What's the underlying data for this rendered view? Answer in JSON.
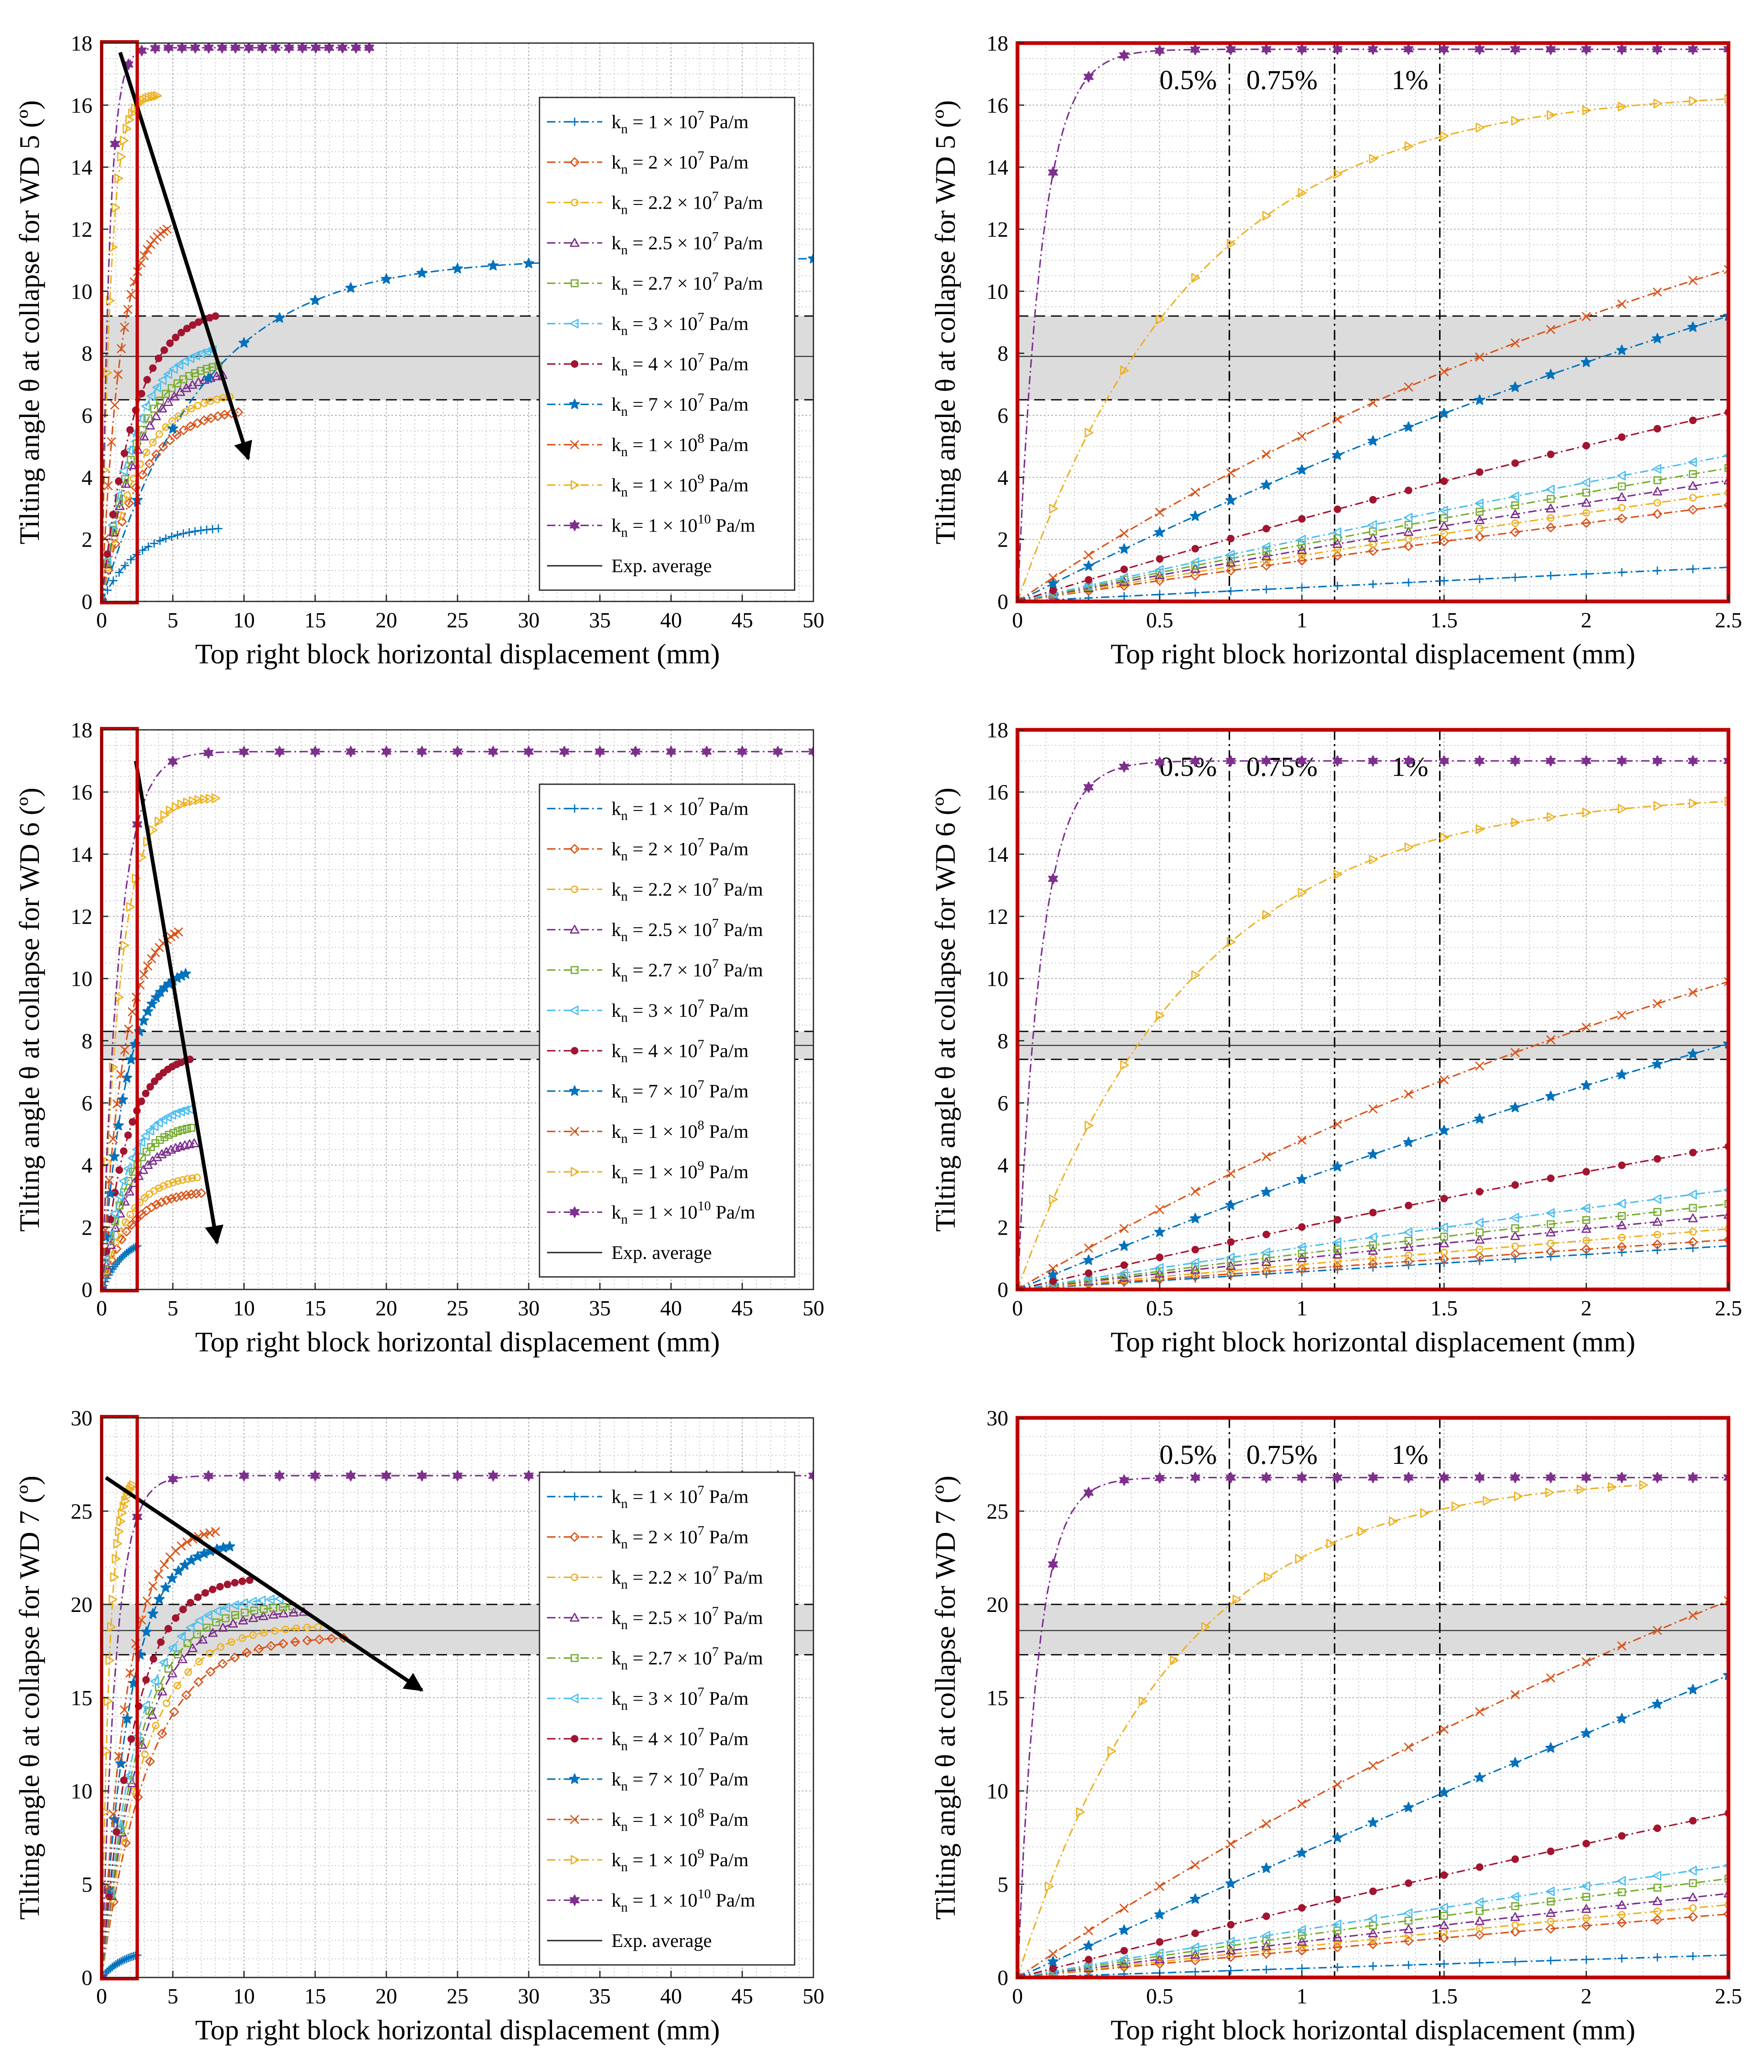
{
  "figure": {
    "legend_labels": [
      {
        "name": "kn1e7",
        "base": "k",
        "sub": "n",
        "eq": " = 1 × 10",
        "exp": "7",
        "unit": " Pa/m"
      },
      {
        "name": "kn2e7",
        "base": "k",
        "sub": "n",
        "eq": " = 2 × 10",
        "exp": "7",
        "unit": " Pa/m"
      },
      {
        "name": "kn2.2e7",
        "base": "k",
        "sub": "n",
        "eq": " = 2.2 × 10",
        "exp": "7",
        "unit": " Pa/m"
      },
      {
        "name": "kn2.5e7",
        "base": "k",
        "sub": "n",
        "eq": " = 2.5 × 10",
        "exp": "7",
        "unit": " Pa/m"
      },
      {
        "name": "kn2.7e7",
        "base": "k",
        "sub": "n",
        "eq": " = 2.7 × 10",
        "exp": "7",
        "unit": " Pa/m"
      },
      {
        "name": "kn3e7",
        "base": "k",
        "sub": "n",
        "eq": " = 3 × 10",
        "exp": "7",
        "unit": " Pa/m"
      },
      {
        "name": "kn4e7",
        "base": "k",
        "sub": "n",
        "eq": " = 4 × 10",
        "exp": "7",
        "unit": " Pa/m"
      },
      {
        "name": "kn7e7",
        "base": "k",
        "sub": "n",
        "eq": " = 7 × 10",
        "exp": "7",
        "unit": " Pa/m"
      },
      {
        "name": "kn1e8",
        "base": "k",
        "sub": "n",
        "eq": " = 1 × 10",
        "exp": "8",
        "unit": " Pa/m"
      },
      {
        "name": "kn1e9",
        "base": "k",
        "sub": "n",
        "eq": " = 1 × 10",
        "exp": "9",
        "unit": " Pa/m"
      },
      {
        "name": "kn1e10",
        "base": "k",
        "sub": "n",
        "eq": " = 1 × 10",
        "exp": "10",
        "unit": " Pa/m"
      }
    ],
    "exp_average_label": "Exp. average",
    "series_colors": [
      "#0072BD",
      "#D95319",
      "#EDB120",
      "#7E2F8E",
      "#77AC30",
      "#4DBEEE",
      "#A2142F",
      "#0072BD",
      "#D95319",
      "#EDB120",
      "#7E2F8E"
    ],
    "series_markers": [
      "plus",
      "diamond",
      "circle",
      "triangle-up",
      "square",
      "triangle-left",
      "dot",
      "star",
      "x",
      "triangle-right",
      "hexagram"
    ],
    "highlight_color": "#C00000",
    "band_color": "#DCDCDC",
    "drift_labels": [
      "0.5%",
      "0.75%",
      "1%"
    ],
    "drift_x_mm": [
      0.745,
      1.115,
      1.485
    ],
    "zoom_region_mm": [
      0,
      2.5
    ]
  },
  "chart_data": [
    {
      "id": "wd5_full",
      "type": "line",
      "xlabel": "Top right block horizontal displacement (mm)",
      "ylabel": "Tilting angle θ at collapse for WD 5 (º)",
      "xlim": [
        0,
        50
      ],
      "ylim": [
        0,
        18
      ],
      "xticks": [
        "0",
        "5",
        "10",
        "15",
        "20",
        "25",
        "30",
        "35",
        "40",
        "45",
        "50"
      ],
      "yticks": [
        "0",
        "2",
        "4",
        "6",
        "8",
        "10",
        "12",
        "14",
        "16",
        "18"
      ],
      "exp_band": {
        "low": 6.5,
        "mean": 7.9,
        "high": 9.2
      },
      "trend_arrow": {
        "from": [
          1.3,
          17.7
        ],
        "to": [
          10.3,
          4.6
        ]
      },
      "legend": true,
      "series": [
        {
          "name": "kn = 1 × 10^7 Pa/m",
          "endX": 8.2,
          "endY": 2.35,
          "k": 3.2
        },
        {
          "name": "kn = 2 × 10^7 Pa/m",
          "endX": 9.6,
          "endY": 6.1,
          "k": 3.5
        },
        {
          "name": "kn = 2.2 × 10^7 Pa/m",
          "endX": 9.0,
          "endY": 6.6,
          "k": 3.5
        },
        {
          "name": "kn = 2.5 × 10^7 Pa/m",
          "endX": 8.5,
          "endY": 7.3,
          "k": 3.5
        },
        {
          "name": "kn = 2.7 × 10^7 Pa/m",
          "endX": 8.2,
          "endY": 7.6,
          "k": 3.5
        },
        {
          "name": "kn = 3 × 10^7 Pa/m",
          "endX": 7.8,
          "endY": 8.1,
          "k": 3.5
        },
        {
          "name": "kn = 4 × 10^7 Pa/m",
          "endX": 8.0,
          "endY": 9.2,
          "k": 3.5
        },
        {
          "name": "kn = 7 × 10^7 Pa/m",
          "endX": 50.0,
          "endY": 11.05,
          "k": 7.0
        },
        {
          "name": "kn = 1 × 10^8 Pa/m",
          "endX": 4.6,
          "endY": 12.0,
          "k": 3.6
        },
        {
          "name": "kn = 1 × 10^9 Pa/m",
          "endX": 3.9,
          "endY": 16.3,
          "k": 6.0
        },
        {
          "name": "kn = 1 × 10^10 Pa/m",
          "endX": 18.8,
          "endY": 17.85,
          "k": 35.0
        }
      ]
    },
    {
      "id": "wd5_zoom",
      "type": "line",
      "xlabel": "Top right block horizontal displacement (mm)",
      "ylabel": "Tilting angle θ at collapse for WD 5 (º)",
      "xlim": [
        0,
        2.5
      ],
      "ylim": [
        0,
        18
      ],
      "xticks": [
        "0",
        "0.5",
        "1",
        "1.5",
        "2",
        "2.5"
      ],
      "yticks": [
        "0",
        "2",
        "4",
        "6",
        "8",
        "10",
        "12",
        "14",
        "16",
        "18"
      ],
      "exp_band": {
        "low": 6.5,
        "mean": 7.9,
        "high": 9.2
      },
      "legend": false,
      "series": [
        {
          "name": "kn = 1 × 10^7 Pa/m",
          "endX": 2.5,
          "endY": 1.1,
          "k": 0.05
        },
        {
          "name": "kn = 2 × 10^7 Pa/m",
          "endX": 2.5,
          "endY": 3.1,
          "k": 0.2
        },
        {
          "name": "kn = 2.2 × 10^7 Pa/m",
          "endX": 2.5,
          "endY": 3.5,
          "k": 0.2
        },
        {
          "name": "kn = 2.5 × 10^7 Pa/m",
          "endX": 2.5,
          "endY": 3.9,
          "k": 0.2
        },
        {
          "name": "kn = 2.7 × 10^7 Pa/m",
          "endX": 2.5,
          "endY": 4.3,
          "k": 0.2
        },
        {
          "name": "kn = 3 × 10^7 Pa/m",
          "endX": 2.5,
          "endY": 4.7,
          "k": 0.2
        },
        {
          "name": "kn = 4 × 10^7 Pa/m",
          "endX": 2.5,
          "endY": 6.1,
          "k": 0.3
        },
        {
          "name": "kn = 7 × 10^7 Pa/m",
          "endX": 2.5,
          "endY": 9.2,
          "k": 0.5
        },
        {
          "name": "kn = 1 × 10^8 Pa/m",
          "endX": 2.5,
          "endY": 10.7,
          "k": 0.8
        },
        {
          "name": "kn = 1 × 10^9 Pa/m",
          "endX": 2.5,
          "endY": 16.2,
          "k": 4.0
        },
        {
          "name": "kn = 1 × 10^10 Pa/m",
          "endX": 2.5,
          "endY": 17.8,
          "k": 30.0
        }
      ]
    },
    {
      "id": "wd6_full",
      "type": "line",
      "xlabel": "Top right block horizontal displacement (mm)",
      "ylabel": "Tilting angle θ at collapse for WD 6 (º)",
      "xlim": [
        0,
        50
      ],
      "ylim": [
        0,
        18
      ],
      "xticks": [
        "0",
        "5",
        "10",
        "15",
        "20",
        "25",
        "30",
        "35",
        "40",
        "45",
        "50"
      ],
      "yticks": [
        "0",
        "2",
        "4",
        "6",
        "8",
        "10",
        "12",
        "14",
        "16",
        "18"
      ],
      "exp_band": {
        "low": 7.4,
        "mean": 7.85,
        "high": 8.3
      },
      "trend_arrow": {
        "from": [
          2.4,
          17.0
        ],
        "to": [
          8.1,
          1.5
        ]
      },
      "legend": true,
      "series": [
        {
          "name": "kn = 1 × 10^7 Pa/m",
          "endX": 2.5,
          "endY": 1.4,
          "k": 1.5
        },
        {
          "name": "kn = 2 × 10^7 Pa/m",
          "endX": 7.0,
          "endY": 3.1,
          "k": 3.5
        },
        {
          "name": "kn = 2.2 × 10^7 Pa/m",
          "endX": 6.7,
          "endY": 3.6,
          "k": 3.5
        },
        {
          "name": "kn = 2.5 × 10^7 Pa/m",
          "endX": 6.5,
          "endY": 4.7,
          "k": 3.5
        },
        {
          "name": "kn = 2.7 × 10^7 Pa/m",
          "endX": 6.3,
          "endY": 5.2,
          "k": 3.5
        },
        {
          "name": "kn = 3 × 10^7 Pa/m",
          "endX": 6.2,
          "endY": 5.8,
          "k": 3.5
        },
        {
          "name": "kn = 4 × 10^7 Pa/m",
          "endX": 6.2,
          "endY": 7.4,
          "k": 3.5
        },
        {
          "name": "kn = 7 × 10^7 Pa/m",
          "endX": 5.9,
          "endY": 10.15,
          "k": 3.5
        },
        {
          "name": "kn = 1 × 10^8 Pa/m",
          "endX": 5.4,
          "endY": 11.5,
          "k": 3.5
        },
        {
          "name": "kn = 1 × 10^9 Pa/m",
          "endX": 8.0,
          "endY": 15.8,
          "k": 6.0
        },
        {
          "name": "kn = 1 × 10^10 Pa/m",
          "endX": 50.0,
          "endY": 17.3,
          "k": 40.0
        }
      ]
    },
    {
      "id": "wd6_zoom",
      "type": "line",
      "xlabel": "Top right block horizontal displacement (mm)",
      "ylabel": "Tilting angle θ at collapse for WD 6 (º)",
      "xlim": [
        0,
        2.5
      ],
      "ylim": [
        0,
        18
      ],
      "xticks": [
        "0",
        "0.5",
        "1",
        "1.5",
        "2",
        "2.5"
      ],
      "yticks": [
        "0",
        "2",
        "4",
        "6",
        "8",
        "10",
        "12",
        "14",
        "16",
        "18"
      ],
      "exp_band": {
        "low": 7.4,
        "mean": 7.85,
        "high": 8.3
      },
      "legend": false,
      "series": [
        {
          "name": "kn = 1 × 10^7 Pa/m",
          "endX": 2.5,
          "endY": 1.4,
          "k": 0.05
        },
        {
          "name": "kn = 2 × 10^7 Pa/m",
          "endX": 2.5,
          "endY": 1.6,
          "k": 0.1
        },
        {
          "name": "kn = 2.2 × 10^7 Pa/m",
          "endX": 2.5,
          "endY": 1.95,
          "k": 0.1
        },
        {
          "name": "kn = 2.5 × 10^7 Pa/m",
          "endX": 2.5,
          "endY": 2.4,
          "k": 0.15
        },
        {
          "name": "kn = 2.7 × 10^7 Pa/m",
          "endX": 2.5,
          "endY": 2.75,
          "k": 0.15
        },
        {
          "name": "kn = 3 × 10^7 Pa/m",
          "endX": 2.5,
          "endY": 3.2,
          "k": 0.2
        },
        {
          "name": "kn = 4 × 10^7 Pa/m",
          "endX": 2.5,
          "endY": 4.6,
          "k": 0.3
        },
        {
          "name": "kn = 7 × 10^7 Pa/m",
          "endX": 2.5,
          "endY": 7.9,
          "k": 0.4
        },
        {
          "name": "kn = 1 × 10^8 Pa/m",
          "endX": 2.5,
          "endY": 9.9,
          "k": 0.7
        },
        {
          "name": "kn = 1 × 10^9 Pa/m",
          "endX": 2.5,
          "endY": 15.7,
          "k": 4.0
        },
        {
          "name": "kn = 1 × 10^10 Pa/m",
          "endX": 2.5,
          "endY": 17.0,
          "k": 30.0
        }
      ]
    },
    {
      "id": "wd7_full",
      "type": "line",
      "xlabel": "Top right block horizontal displacement (mm)",
      "ylabel": "Tilting angle θ at collapse for WD 7 (º)",
      "xlim": [
        0,
        50
      ],
      "ylim": [
        0,
        30
      ],
      "xticks": [
        "0",
        "5",
        "10",
        "15",
        "20",
        "25",
        "30",
        "35",
        "40",
        "45",
        "50"
      ],
      "yticks": [
        "0",
        "5",
        "10",
        "15",
        "20",
        "25",
        "30"
      ],
      "exp_band": {
        "low": 17.3,
        "mean": 18.6,
        "high": 20.0
      },
      "trend_arrow": {
        "from": [
          0.3,
          26.8
        ],
        "to": [
          22.5,
          15.4
        ]
      },
      "legend": true,
      "series": [
        {
          "name": "kn = 1 × 10^7 Pa/m",
          "endX": 2.5,
          "endY": 1.2,
          "k": 1.5
        },
        {
          "name": "kn = 2 × 10^7 Pa/m",
          "endX": 17.0,
          "endY": 18.2,
          "k": 5.0
        },
        {
          "name": "kn = 2.2 × 10^7 Pa/m",
          "endX": 15.2,
          "endY": 18.8,
          "k": 5.0
        },
        {
          "name": "kn = 2.5 × 10^7 Pa/m",
          "endX": 14.2,
          "endY": 19.6,
          "k": 5.0
        },
        {
          "name": "kn = 2.7 × 10^7 Pa/m",
          "endX": 13.4,
          "endY": 19.9,
          "k": 5.0
        },
        {
          "name": "kn = 3 × 10^7 Pa/m",
          "endX": 12.5,
          "endY": 20.3,
          "k": 5.0
        },
        {
          "name": "kn = 4 × 10^7 Pa/m",
          "endX": 10.4,
          "endY": 21.3,
          "k": 4.5
        },
        {
          "name": "kn = 7 × 10^7 Pa/m",
          "endX": 9.0,
          "endY": 23.1,
          "k": 4.5
        },
        {
          "name": "kn = 1 × 10^8 Pa/m",
          "endX": 8.0,
          "endY": 23.9,
          "k": 4.5
        },
        {
          "name": "kn = 1 × 10^9 Pa/m",
          "endX": 2.2,
          "endY": 26.4,
          "k": 4.0
        },
        {
          "name": "kn = 1 × 10^10 Pa/m",
          "endX": 50.0,
          "endY": 26.9,
          "k": 50.0
        }
      ]
    },
    {
      "id": "wd7_zoom",
      "type": "line",
      "xlabel": "Top right block horizontal displacement (mm)",
      "ylabel": "Tilting angle θ at collapse for WD 7 (º)",
      "xlim": [
        0,
        2.5
      ],
      "ylim": [
        0,
        30
      ],
      "xticks": [
        "0",
        "0.5",
        "1",
        "1.5",
        "2",
        "2.5"
      ],
      "yticks": [
        "0",
        "5",
        "10",
        "15",
        "20",
        "25",
        "30"
      ],
      "exp_band": {
        "low": 17.3,
        "mean": 18.6,
        "high": 20.0
      },
      "legend": false,
      "series": [
        {
          "name": "kn = 1 × 10^7 Pa/m",
          "endX": 2.5,
          "endY": 1.2,
          "k": 0.05
        },
        {
          "name": "kn = 2 × 10^7 Pa/m",
          "endX": 2.5,
          "endY": 3.4,
          "k": 0.2
        },
        {
          "name": "kn = 2.2 × 10^7 Pa/m",
          "endX": 2.5,
          "endY": 3.9,
          "k": 0.2
        },
        {
          "name": "kn = 2.5 × 10^7 Pa/m",
          "endX": 2.5,
          "endY": 4.5,
          "k": 0.2
        },
        {
          "name": "kn = 2.7 × 10^7 Pa/m",
          "endX": 2.5,
          "endY": 5.3,
          "k": 0.2
        },
        {
          "name": "kn = 3 × 10^7 Pa/m",
          "endX": 2.5,
          "endY": 6.0,
          "k": 0.2
        },
        {
          "name": "kn = 4 × 10^7 Pa/m",
          "endX": 2.5,
          "endY": 8.8,
          "k": 0.2
        },
        {
          "name": "kn = 7 × 10^7 Pa/m",
          "endX": 2.5,
          "endY": 16.2,
          "k": 0.1
        },
        {
          "name": "kn = 1 × 10^8 Pa/m",
          "endX": 2.5,
          "endY": 20.2,
          "k": 0.5
        },
        {
          "name": "kn = 1 × 10^9 Pa/m",
          "endX": 2.2,
          "endY": 26.4,
          "k": 4.0
        },
        {
          "name": "kn = 1 × 10^10 Pa/m",
          "endX": 2.5,
          "endY": 26.8,
          "k": 35.0
        }
      ]
    }
  ]
}
